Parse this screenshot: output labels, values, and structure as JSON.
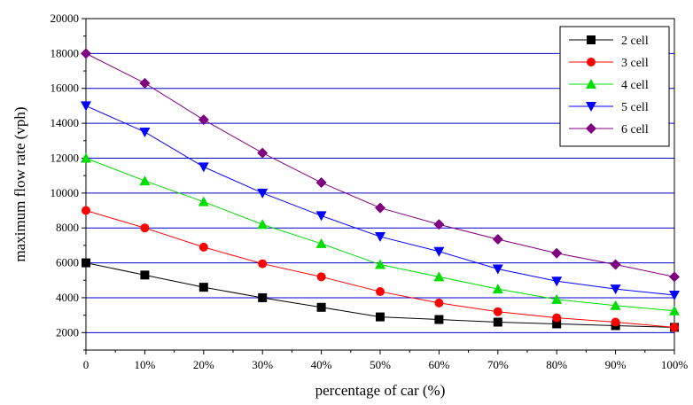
{
  "chart_data": {
    "type": "line",
    "title": "",
    "xlabel": "percentage of car (%)",
    "ylabel": "maximum flow rate (vph)",
    "categories": [
      "0",
      "10%",
      "20%",
      "30%",
      "40%",
      "50%",
      "60%",
      "70%",
      "80%",
      "90%",
      "100%"
    ],
    "ylim": [
      1000,
      20000
    ],
    "yticks": [
      "2000",
      "4000",
      "6000",
      "8000",
      "10000",
      "12000",
      "14000",
      "16000",
      "18000",
      "20000"
    ],
    "grid": "horizontal",
    "legend_position": "top-right",
    "series": [
      {
        "name": "2 cell",
        "color": "#000000",
        "marker": "square",
        "values": [
          6000,
          5300,
          4600,
          4000,
          3450,
          2900,
          2750,
          2600,
          2500,
          2400,
          2300
        ]
      },
      {
        "name": "3 cell",
        "color": "#ff0000",
        "marker": "circle",
        "values": [
          9000,
          8000,
          6900,
          5950,
          5200,
          4350,
          3700,
          3200,
          2850,
          2600,
          2300
        ]
      },
      {
        "name": "4 cell",
        "color": "#00dd00",
        "marker": "triangle-up",
        "values": [
          12000,
          10700,
          9500,
          8200,
          7100,
          5900,
          5200,
          4500,
          3900,
          3550,
          3250
        ]
      },
      {
        "name": "5 cell",
        "color": "#0000ff",
        "marker": "triangle-down",
        "values": [
          15000,
          13500,
          11500,
          10000,
          8700,
          7500,
          6650,
          5650,
          4950,
          4500,
          4150
        ]
      },
      {
        "name": "6 cell",
        "color": "#800080",
        "marker": "diamond",
        "values": [
          18000,
          16300,
          14200,
          12300,
          10600,
          9150,
          8200,
          7350,
          6550,
          5900,
          5200
        ]
      }
    ]
  }
}
